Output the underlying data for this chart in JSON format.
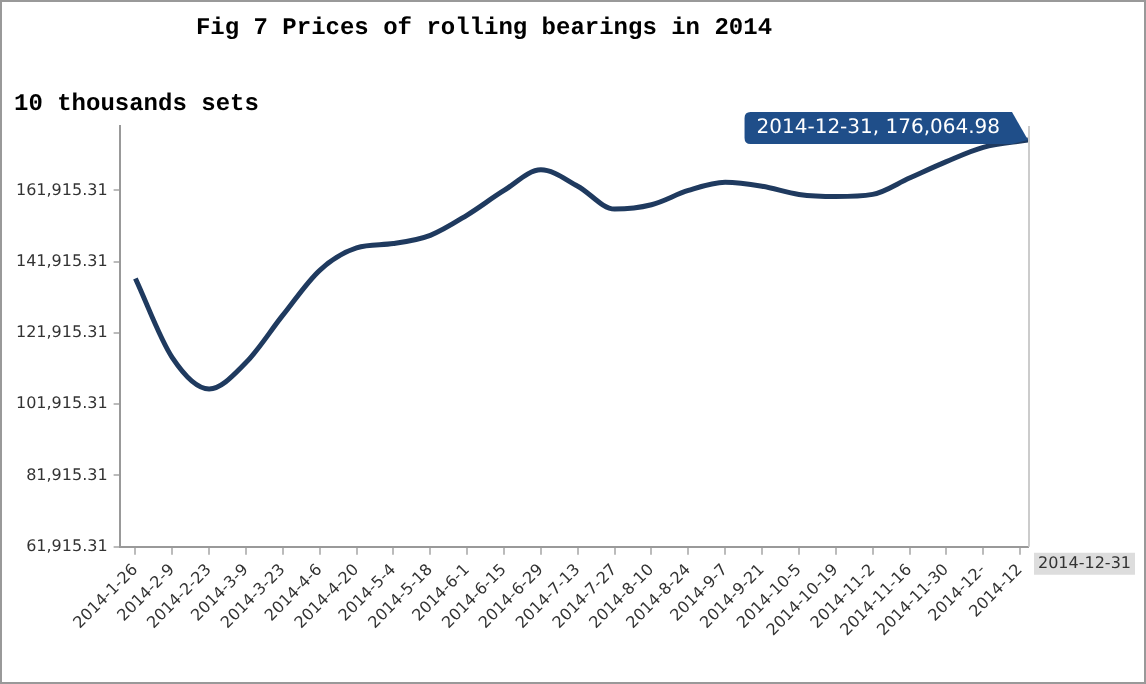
{
  "chart_data": {
    "type": "line",
    "title": "Fig 7 Prices of rolling bearings in 2014",
    "ylabel": "10 thousands sets",
    "x": [
      "2014-01-26",
      "2014-02-09",
      "2014-02-23",
      "2014-03-09",
      "2014-03-23",
      "2014-04-06",
      "2014-04-20",
      "2014-05-04",
      "2014-05-18",
      "2014-06-01",
      "2014-06-15",
      "2014-06-29",
      "2014-07-13",
      "2014-07-27",
      "2014-08-10",
      "2014-08-24",
      "2014-09-07",
      "2014-09-21",
      "2014-10-05",
      "2014-10-19",
      "2014-11-02",
      "2014-11-16",
      "2014-11-30",
      "2014-12-14",
      "2014-12-31"
    ],
    "series": [
      {
        "color": "#1f3a5f",
        "values": [
          137200,
          115000,
          106200,
          113600,
          126900,
          139500,
          145800,
          147000,
          149300,
          155000,
          161900,
          167700,
          163100,
          156700,
          157900,
          161900,
          164200,
          163100,
          160800,
          160200,
          160800,
          165400,
          170000,
          174000,
          176064.98
        ]
      }
    ],
    "xlim": [
      "2014-01-20",
      "2014-12-31"
    ],
    "xticks": [
      {
        "value": "2014-01-26",
        "label": "2014-1-26"
      },
      {
        "value": "2014-02-09",
        "label": "2014-2-9"
      },
      {
        "value": "2014-02-23",
        "label": "2014-2-23"
      },
      {
        "value": "2014-03-09",
        "label": "2014-3-9"
      },
      {
        "value": "2014-03-23",
        "label": "2014-3-23"
      },
      {
        "value": "2014-04-06",
        "label": "2014-4-6"
      },
      {
        "value": "2014-04-20",
        "label": "2014-4-20"
      },
      {
        "value": "2014-05-04",
        "label": "2014-5-4"
      },
      {
        "value": "2014-05-18",
        "label": "2014-5-18"
      },
      {
        "value": "2014-06-01",
        "label": "2014-6-1"
      },
      {
        "value": "2014-06-15",
        "label": "2014-6-15"
      },
      {
        "value": "2014-06-29",
        "label": "2014-6-29"
      },
      {
        "value": "2014-07-13",
        "label": "2014-7-13"
      },
      {
        "value": "2014-07-27",
        "label": "2014-7-27"
      },
      {
        "value": "2014-08-10",
        "label": "2014-8-10"
      },
      {
        "value": "2014-08-24",
        "label": "2014-8-24"
      },
      {
        "value": "2014-09-07",
        "label": "2014-9-7"
      },
      {
        "value": "2014-09-21",
        "label": "2014-9-21"
      },
      {
        "value": "2014-10-05",
        "label": "2014-10-5"
      },
      {
        "value": "2014-10-19",
        "label": "2014-10-19"
      },
      {
        "value": "2014-11-02",
        "label": "2014-11-2"
      },
      {
        "value": "2014-11-16",
        "label": "2014-11-16"
      },
      {
        "value": "2014-11-30",
        "label": "2014-11-30"
      },
      {
        "value": "2014-12-14",
        "label": "2014-12-"
      },
      {
        "value": "2014-12-28",
        "label": "2014-12"
      }
    ],
    "ylim": [
      61915.31,
      180000
    ],
    "yticks": [
      {
        "value": 61915.31,
        "label": "61,915.31"
      },
      {
        "value": 81915.31,
        "label": "81,915.31"
      },
      {
        "value": 101915.31,
        "label": "101,915.31"
      },
      {
        "value": 121915.31,
        "label": "121,915.31"
      },
      {
        "value": 141915.31,
        "label": "141,915.31"
      },
      {
        "value": 161915.31,
        "label": "161,915.31"
      }
    ],
    "annotations": [
      {
        "text": "2014-12-31, 176,064.98",
        "x": "2014-12-31",
        "y": 176064.98
      },
      "2014-12-31"
    ],
    "grid": false,
    "legend": false,
    "marker": "none",
    "line_style": "solid"
  }
}
